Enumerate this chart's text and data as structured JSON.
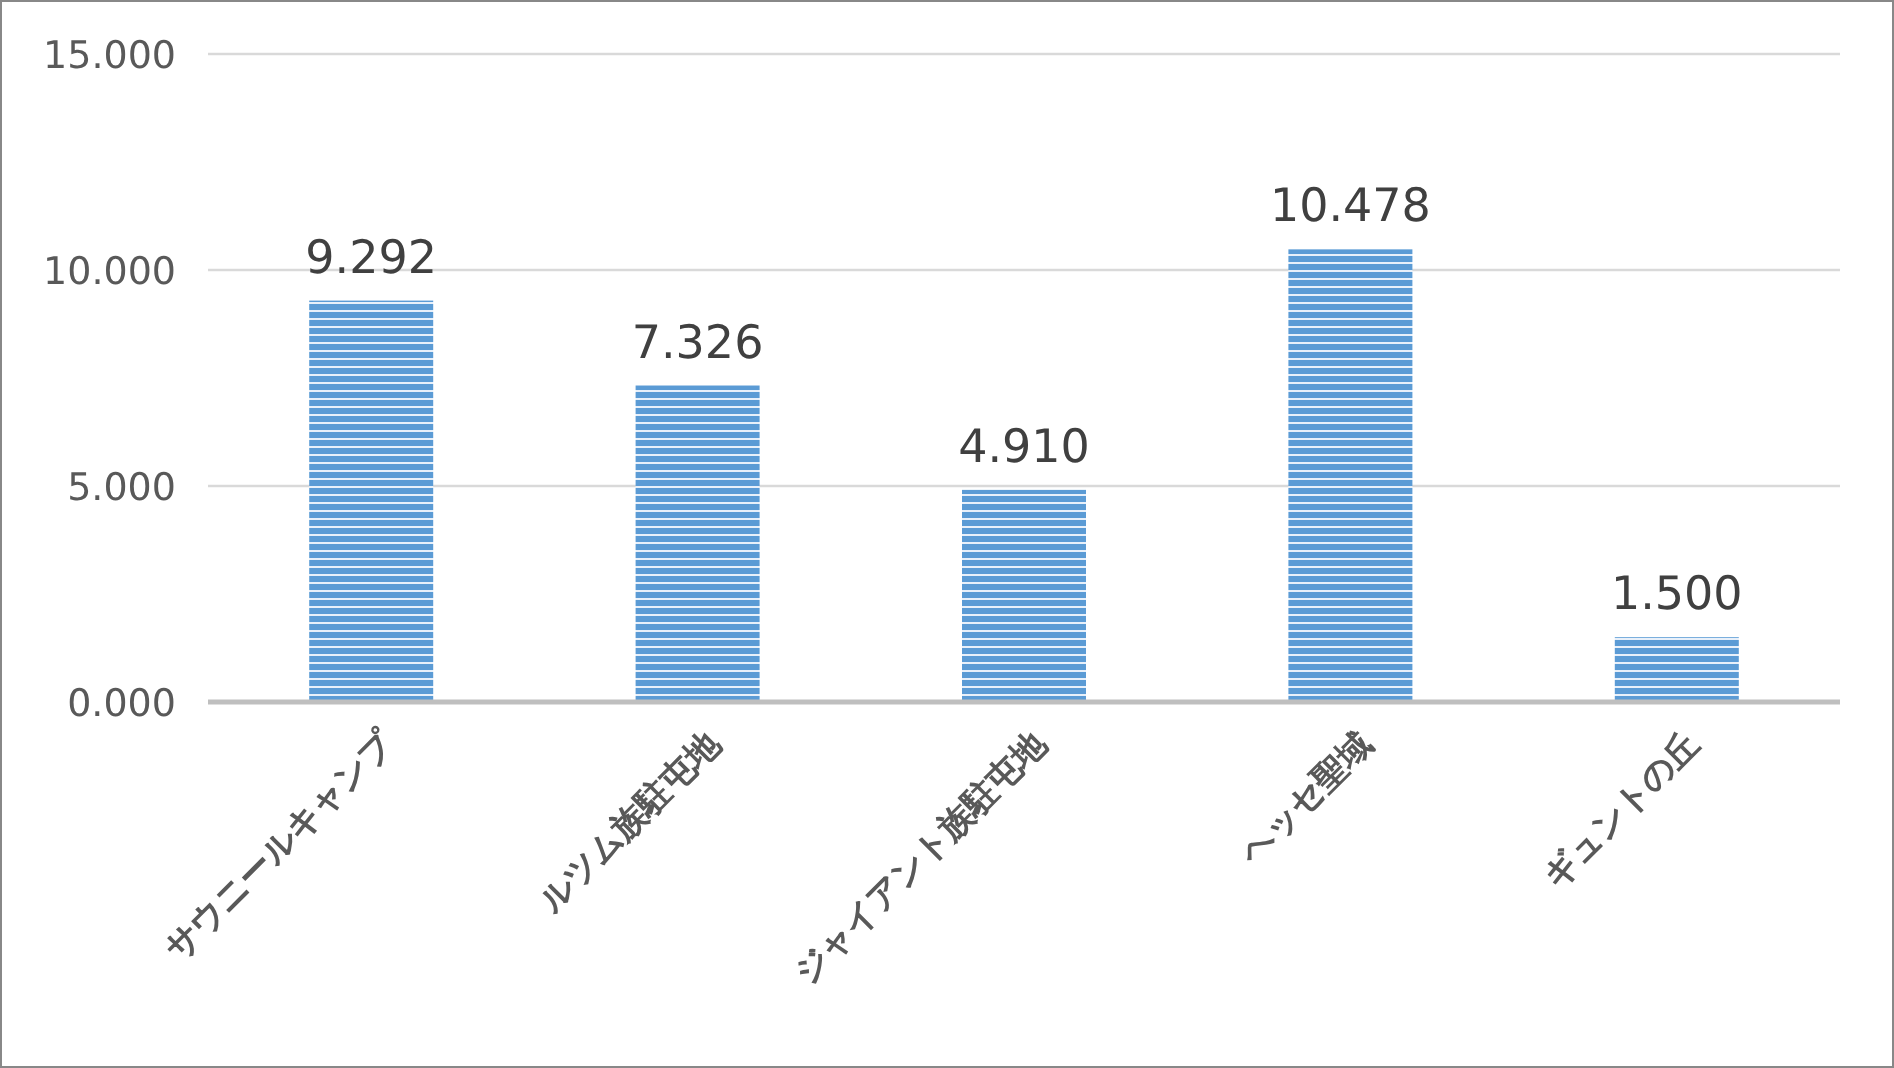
{
  "chart_data": {
    "type": "bar",
    "categories": [
      "サウニールキャンプ",
      "ルツム族駐屯地",
      "ジャイアント族駐屯地",
      "ヘッセ聖域",
      "ギュントの丘"
    ],
    "values": [
      9.292,
      7.326,
      4.91,
      10.478,
      1.5
    ],
    "value_labels": [
      "9.292",
      "7.326",
      "4.910",
      "10.478",
      "1.500"
    ],
    "color": "#5b9bd5",
    "ylim": [
      0,
      15
    ],
    "yticks": [
      {
        "value": 0,
        "label": "0.000"
      },
      {
        "value": 5,
        "label": "5.000"
      },
      {
        "value": 10,
        "label": "10.000"
      },
      {
        "value": 15,
        "label": "15.000"
      }
    ],
    "grid": "y"
  }
}
